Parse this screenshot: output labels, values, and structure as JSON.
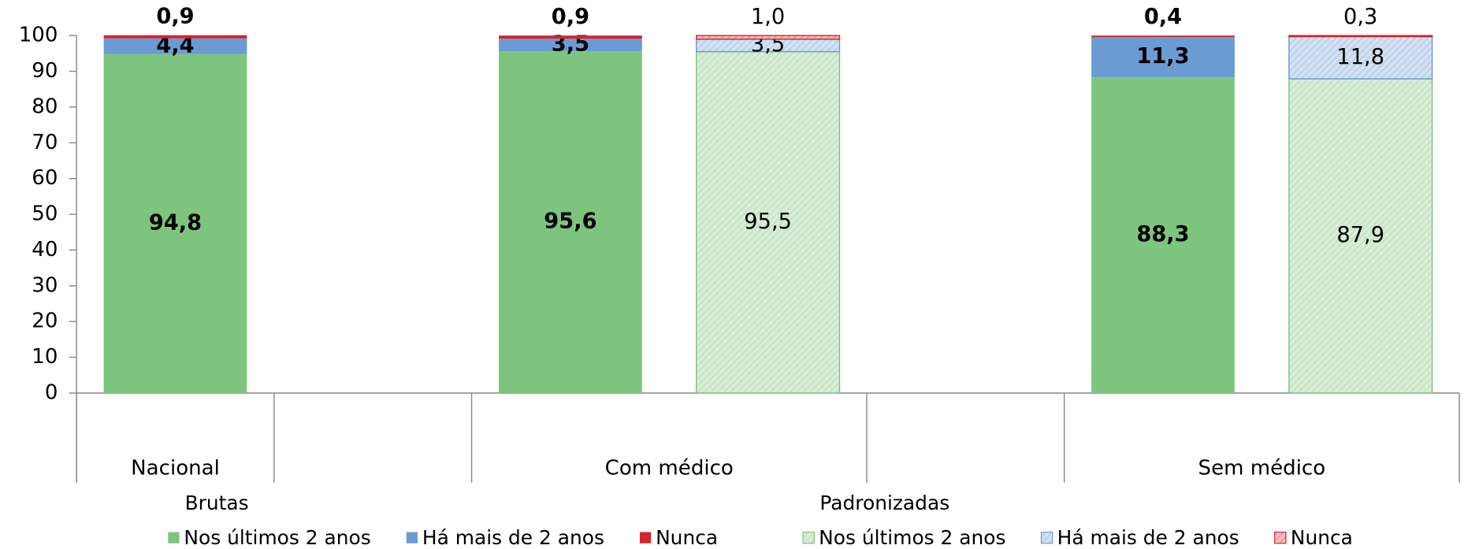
{
  "chart_data": {
    "type": "stacked_bar",
    "categories": [
      "Nacional",
      null,
      "Com médico",
      null,
      "Sem médico"
    ],
    "ylim": [
      0,
      100
    ],
    "yticks": [
      0,
      10,
      20,
      30,
      40,
      50,
      60,
      70,
      80,
      90,
      100
    ],
    "stacks": [
      {
        "name": "Brutas",
        "bold_labels": true,
        "hatch": false,
        "series": [
          {
            "name": "Nos últimos 2 anos",
            "color": "#7dc57f",
            "values": [
              94.8,
              null,
              95.6,
              null,
              88.3
            ],
            "value_labels": [
              "94,8",
              null,
              "95,6",
              null,
              "88,3"
            ]
          },
          {
            "name": "Há mais de 2 anos",
            "color": "#6a9bd3",
            "values": [
              4.4,
              null,
              3.5,
              null,
              11.3
            ],
            "value_labels": [
              "4,4",
              null,
              "3,5",
              null,
              "11,3"
            ]
          },
          {
            "name": "Nunca",
            "color": "#d0262e",
            "values": [
              0.9,
              null,
              0.9,
              null,
              0.4
            ],
            "value_labels": [
              "0,9",
              null,
              "0,9",
              null,
              "0,4"
            ]
          }
        ]
      },
      {
        "name": "Padronizadas",
        "bold_labels": false,
        "hatch": true,
        "series": [
          {
            "name": "Nos últimos 2 anos",
            "color": "#7dc57f",
            "values": [
              null,
              null,
              95.5,
              null,
              87.9
            ],
            "value_labels": [
              null,
              null,
              "95,5",
              null,
              "87,9"
            ]
          },
          {
            "name": "Há mais de 2 anos",
            "color": "#6a9bd3",
            "values": [
              null,
              null,
              3.5,
              null,
              11.8
            ],
            "value_labels": [
              null,
              null,
              "3,5",
              null,
              "11,8"
            ]
          },
          {
            "name": "Nunca",
            "color": "#d0262e",
            "values": [
              null,
              null,
              1.0,
              null,
              0.3
            ],
            "value_labels": [
              null,
              null,
              "1,0",
              null,
              "0,3"
            ]
          }
        ]
      }
    ]
  }
}
